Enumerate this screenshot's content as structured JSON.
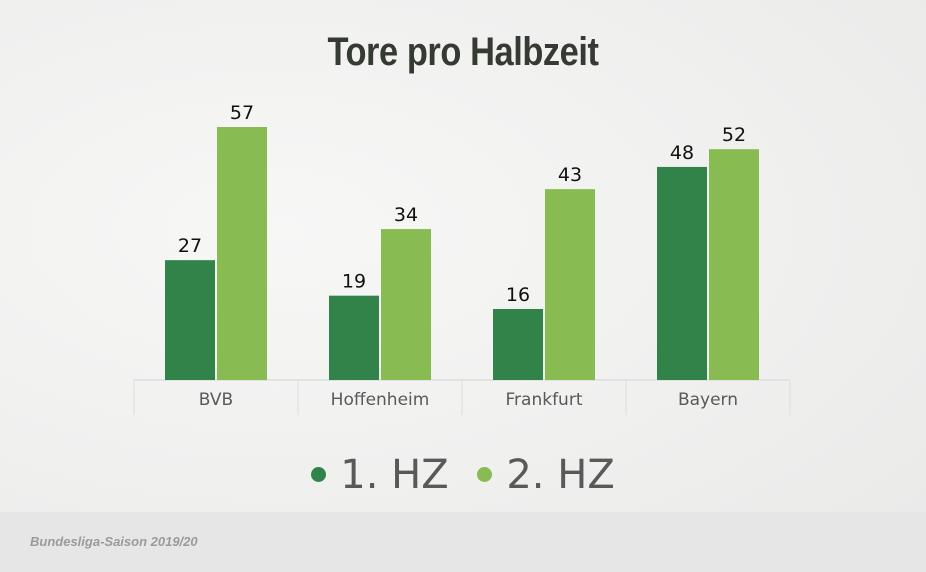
{
  "chart_data": {
    "type": "bar",
    "title": "Tore pro Halbzeit",
    "categories": [
      "BVB",
      "Hoffenheim",
      "Frankfurt",
      "Bayern"
    ],
    "series": [
      {
        "name": "1. HZ",
        "color": "#31834a",
        "values": [
          27,
          19,
          16,
          48
        ]
      },
      {
        "name": "2. HZ",
        "color": "#88bb51",
        "values": [
          57,
          34,
          43,
          52
        ]
      }
    ],
    "ylim": [
      0,
      57
    ],
    "data_labels": true,
    "grid": false,
    "legend_position": "bottom-center"
  },
  "footer": {
    "note": "Bundesliga-Saison 2019/20"
  },
  "colors": {
    "title": "#353a33",
    "label": "#111111",
    "category_label": "#595959",
    "axis": "#dddddd",
    "footer_bg": "#e6e6e6"
  }
}
